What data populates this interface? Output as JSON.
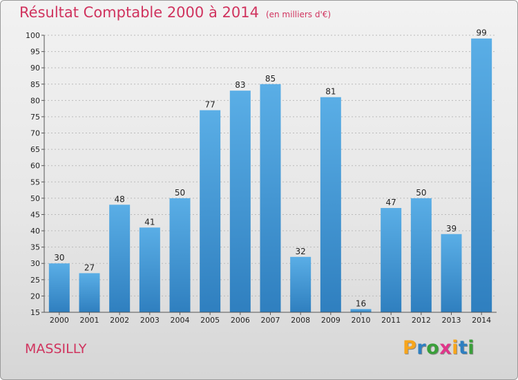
{
  "chart_data": {
    "type": "bar",
    "title": "Résultat Comptable 2000 à 2014",
    "subtitle": "(en milliers d'€)",
    "categories": [
      "2000",
      "2001",
      "2002",
      "2003",
      "2004",
      "2005",
      "2006",
      "2007",
      "2008",
      "2009",
      "2010",
      "2011",
      "2012",
      "2013",
      "2014"
    ],
    "values": [
      30,
      27,
      48,
      41,
      50,
      77,
      83,
      85,
      32,
      81,
      16,
      47,
      50,
      39,
      99
    ],
    "ylim": [
      15,
      100
    ],
    "yticks": [
      15,
      20,
      25,
      30,
      35,
      40,
      45,
      50,
      55,
      60,
      65,
      70,
      75,
      80,
      85,
      90,
      95,
      100
    ],
    "grid": "horizontal dashed",
    "xlabel": "",
    "ylabel": ""
  },
  "location": "MASSILLY",
  "logo": {
    "letters": [
      "P",
      "r",
      "o",
      "x",
      "i",
      "t",
      "i"
    ],
    "colors": [
      "#f7a51c",
      "#2e7fc1",
      "#3a9f3a",
      "#e0368a",
      "#f7a51c",
      "#2e7fc1",
      "#3a9f3a"
    ]
  },
  "colors": {
    "title": "#d0335e",
    "bar_top": "#5aaee6",
    "bar_bottom": "#2f7fbf"
  }
}
